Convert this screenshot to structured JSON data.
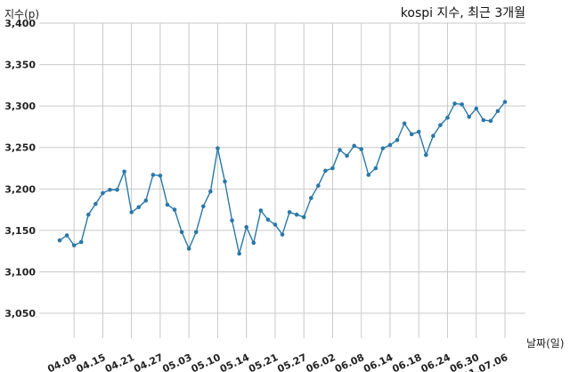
{
  "chart_data": {
    "type": "line",
    "title": "kospi 지수, 최근 3개월",
    "xlabel": "날짜(일)",
    "ylabel": "지수(p)",
    "ylim": [
      3020,
      3400
    ],
    "yticks": [
      3050,
      3100,
      3150,
      3200,
      3250,
      3300,
      3350,
      3400
    ],
    "ytick_labels": [
      "3,050",
      "3,100",
      "3,150",
      "3,200",
      "3,250",
      "3,300",
      "3,350",
      "3,400"
    ],
    "xticks": [
      "04.09",
      "04.15",
      "04.21",
      "04.27",
      "05.03",
      "05.10",
      "05.14",
      "05.21",
      "05.27",
      "06.02",
      "06.08",
      "06.14",
      "06.18",
      "06.24",
      "06.30",
      "21.07.06"
    ],
    "xtick_positions": [
      2,
      6,
      10,
      14,
      18,
      22,
      26,
      30,
      34,
      38,
      42,
      46,
      50,
      54,
      58,
      62
    ],
    "grid": true,
    "series": [
      {
        "values": [
          3138,
          3144,
          3132,
          3136,
          3169,
          3182,
          3195,
          3199,
          3199,
          3221,
          3172,
          3178,
          3186,
          3217,
          3216,
          3181,
          3175,
          3148,
          3128,
          3148,
          3179,
          3197,
          3249,
          3209,
          3162,
          3122,
          3154,
          3135,
          3174,
          3163,
          3157,
          3145,
          3172,
          3169,
          3166,
          3189,
          3204,
          3222,
          3225,
          3247,
          3240,
          3252,
          3248,
          3217,
          3225,
          3249,
          3253,
          3259,
          3279,
          3266,
          3269,
          3241,
          3264,
          3277,
          3286,
          3303,
          3302,
          3287,
          3297,
          3283,
          3282,
          3294,
          3305
        ]
      }
    ]
  }
}
